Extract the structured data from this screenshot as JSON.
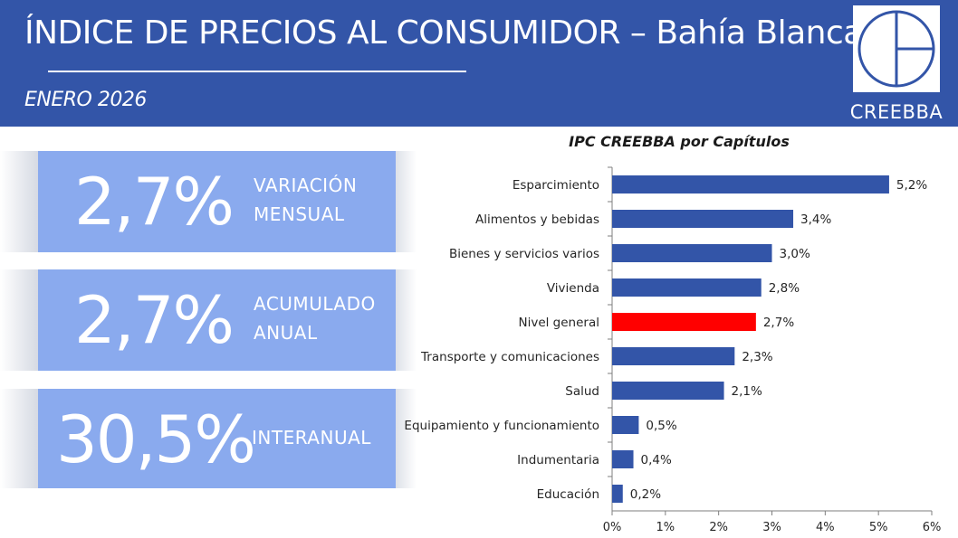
{
  "header": {
    "title": "ÍNDICE DE PRECIOS AL CONSUMIDOR – Bahía Blanca",
    "period": "ENERO 2026",
    "logo_text": "CREEBBA"
  },
  "colors": {
    "header_bg": "#3355a8",
    "card_bg": "#8aaaee",
    "bar": "#3355a8",
    "highlight_bar": "#ff0000"
  },
  "stats": [
    {
      "value": "2,7%",
      "label_line1": "VARIACIÓN",
      "label_line2": "MENSUAL"
    },
    {
      "value": "2,7%",
      "label_line1": "ACUMULADO",
      "label_line2": "ANUAL"
    },
    {
      "value": "30,5%",
      "label_line1": "INTERANUAL",
      "label_line2": ""
    }
  ],
  "chart_data": {
    "type": "bar",
    "orientation": "horizontal",
    "title": "IPC CREEBBA por Capítulos",
    "categories": [
      "Esparcimiento",
      "Alimentos y bebidas",
      "Bienes y servicios varios",
      "Vivienda",
      "Nivel general",
      "Transporte y comunicaciones",
      "Salud",
      "Equipamiento y funcionamiento",
      "Indumentaria",
      "Educación"
    ],
    "values": [
      5.2,
      3.4,
      3.0,
      2.8,
      2.7,
      2.3,
      2.1,
      0.5,
      0.4,
      0.2
    ],
    "value_labels": [
      "5,2%",
      "3,4%",
      "3,0%",
      "2,8%",
      "2,7%",
      "2,3%",
      "2,1%",
      "0,5%",
      "0,4%",
      "0,2%"
    ],
    "highlight_category": "Nivel general",
    "xlim": [
      0,
      6
    ],
    "xticks": [
      0,
      1,
      2,
      3,
      4,
      5,
      6
    ],
    "xtick_labels": [
      "0%",
      "1%",
      "2%",
      "3%",
      "4%",
      "5%",
      "6%"
    ],
    "grid": false,
    "legend": "none"
  }
}
